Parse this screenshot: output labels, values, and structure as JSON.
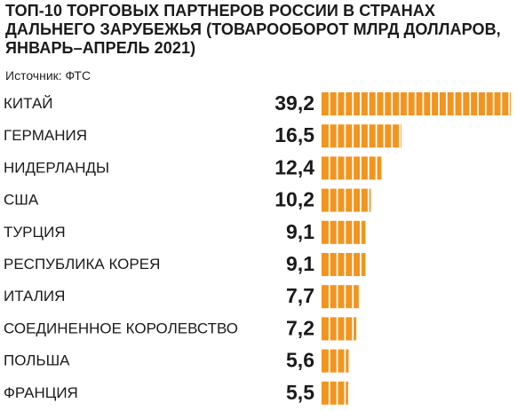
{
  "title": "ТОП-10 ТОРГОВЫХ ПАРТНЕРОВ РОССИИ В СТРАНАХ ДАЛЬНЕГО ЗАРУБЕЖЬЯ (ТОВАРООБОРОТ МЛРД ДОЛЛАРОВ, ЯНВАРЬ–АПРЕЛЬ 2021)",
  "source": "Источник: ФТС",
  "colors": {
    "bar": "#f2941e",
    "bar_divider": "#ffffff",
    "text": "#1a1a1a"
  },
  "chart_data": {
    "type": "bar",
    "orientation": "horizontal",
    "title": "ТОП-10 ТОРГОВЫХ ПАРТНЕРОВ РОССИИ В СТРАНАХ ДАЛЬНЕГО ЗАРУБЕЖЬЯ (ТОВАРООБОРОТ МЛРД ДОЛЛАРОВ, ЯНВАРЬ–АПРЕЛЬ 2021)",
    "categories": [
      "КИТАЙ",
      "ГЕРМАНИЯ",
      "НИДЕРЛАНДЫ",
      "США",
      "ТУРЦИЯ",
      "РЕСПУБЛИКА КОРЕЯ",
      "ИТАЛИЯ",
      "СОЕДИНЕННОЕ КОРОЛЕВСТВО",
      "ПОЛЬША",
      "ФРАНЦИЯ"
    ],
    "values": [
      39.2,
      16.5,
      12.4,
      10.2,
      9.1,
      9.1,
      7.7,
      7.2,
      5.6,
      5.5
    ],
    "value_labels": [
      "39,2",
      "16,5",
      "12,4",
      "10,2",
      "9,1",
      "9,1",
      "7,7",
      "7,2",
      "5,6",
      "5,5"
    ],
    "xlim": [
      0,
      39.2
    ],
    "grid": false,
    "legend": "none"
  }
}
